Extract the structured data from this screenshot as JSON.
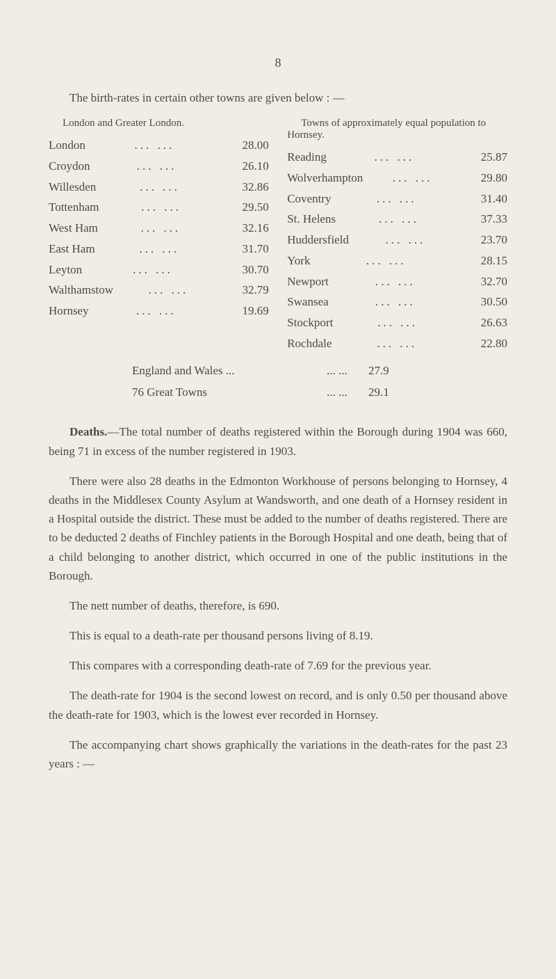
{
  "page_number": "8",
  "intro": "The birth-rates in certain other towns are given below : —",
  "left_header": "London and Greater London.",
  "right_header": "Towns of approximately equal population to Hornsey.",
  "left_rows": [
    {
      "label": "London",
      "value": "28.00"
    },
    {
      "label": "Croydon",
      "value": "26.10"
    },
    {
      "label": "Willesden",
      "value": "32.86"
    },
    {
      "label": "Tottenham",
      "value": "29.50"
    },
    {
      "label": "West Ham",
      "value": "32.16"
    },
    {
      "label": "East Ham",
      "value": "31.70"
    },
    {
      "label": "Leyton",
      "value": "30.70"
    },
    {
      "label": "Walthamstow",
      "value": "32.79"
    },
    {
      "label": "Hornsey",
      "value": "19.69"
    }
  ],
  "right_rows": [
    {
      "label": "Reading",
      "value": "25.87"
    },
    {
      "label": "Wolverhampton",
      "value": "29.80"
    },
    {
      "label": "Coventry",
      "value": "31.40"
    },
    {
      "label": "St. Helens",
      "value": "37.33"
    },
    {
      "label": "Huddersfield",
      "value": "23.70"
    },
    {
      "label": "York",
      "value": "28.15"
    },
    {
      "label": "Newport",
      "value": "32.70"
    },
    {
      "label": "Swansea",
      "value": "30.50"
    },
    {
      "label": "Stockport",
      "value": "26.63"
    },
    {
      "label": "Rochdale",
      "value": "22.80"
    }
  ],
  "summary": [
    {
      "label": "England and Wales ...",
      "value": "27.9"
    },
    {
      "label": "76 Great Towns",
      "value": "29.1"
    }
  ],
  "paragraphs": {
    "p1_lead": "Deaths.",
    "p1": "—The total number of deaths registered within the Borough during 1904 was 660, being 71 in excess of the number registered in 1903.",
    "p2": "There were also 28 deaths in the Edmonton Workhouse of persons belonging to Hornsey, 4 deaths in the Middlesex County Asylum at Wandsworth, and one death of a Hornsey resident in a Hospital outside the district. These must be added to the number of deaths registered. There are to be deducted 2 deaths of Finchley patients in the Borough Hospital and one death, being that of a child belonging to another district, which occurred in one of the public institutions in the Borough.",
    "p3": "The nett number of deaths, therefore, is 690.",
    "p4": "This is equal to a death-rate per thousand persons living of 8.19.",
    "p5": "This compares with a corresponding death-rate of 7.69 for the previous year.",
    "p6": "The death-rate for 1904 is the second lowest on record, and is only 0.50 per thousand above the death-rate for 1903, which is the lowest ever recorded in Hornsey.",
    "p7": "The accompanying chart shows graphically the variations in the death-rates for the past 23 years : —"
  },
  "colors": {
    "background": "#f0ede4",
    "text": "#4a4a45"
  }
}
